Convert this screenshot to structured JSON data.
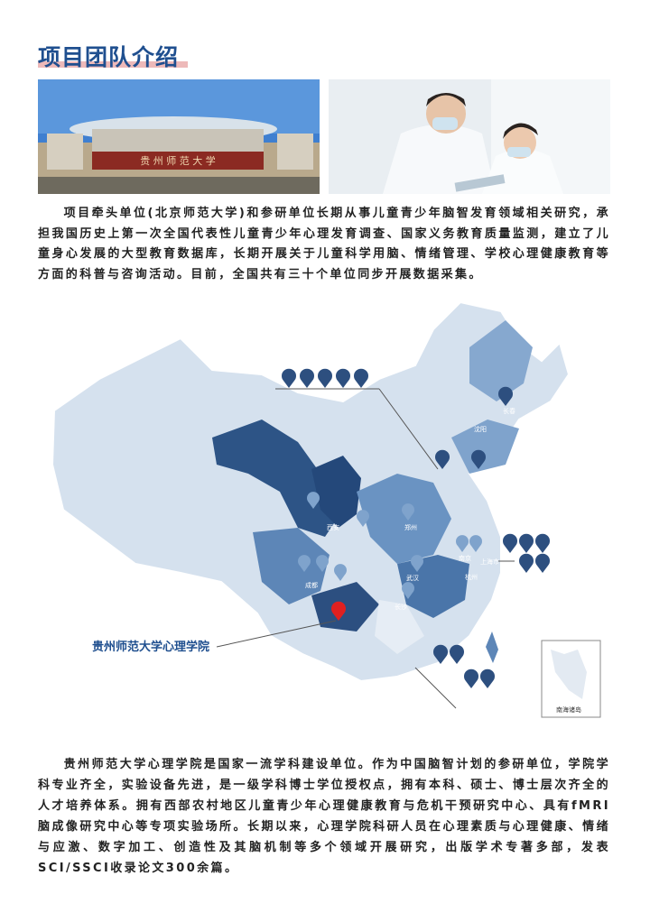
{
  "header": {
    "title": "项目团队介绍"
  },
  "intro": "项目牵头单位(北京师范大学)和参研单位长期从事儿童青少年脑智发育领域相关研究，承担我国历史上第一次全国代表性儿童青少年心理发育调查、国家义务教育质量监测，建立了儿童身心发展的大型教育数据库，长期开展关于儿童科学用脑、情绪管理、学校心理健康教育等方面的科普与咨询活动。目前，全国共有三十个单位同步开展数据采集。",
  "map": {
    "highlight_label": "贵州师范大学心理学院",
    "cities": [
      "长春",
      "沈阳",
      "西安",
      "郑州",
      "成都",
      "武汉",
      "南京",
      "杭州",
      "上海市",
      "长沙"
    ],
    "inset_label": "南海诸岛"
  },
  "body": "贵州师范大学心理学院是国家一流学科建设单位。作为中国脑智计划的参研单位，学院学科专业齐全，实验设备先进，是一级学科博士学位授权点，拥有本科、硕士、博士层次齐全的人才培养体系。拥有西部农村地区儿童青少年心理健康教育与危机干预研究中心、具有fMRI脑成像研究中心等专项实验场所。长期以来，心理学院科研人员在心理素质与心理健康、情绪与应激、数字加工、创造性及其脑机制等多个领域开展研究，出版学术专著多部，发表SCI/SSCI收录论文300余篇。"
}
